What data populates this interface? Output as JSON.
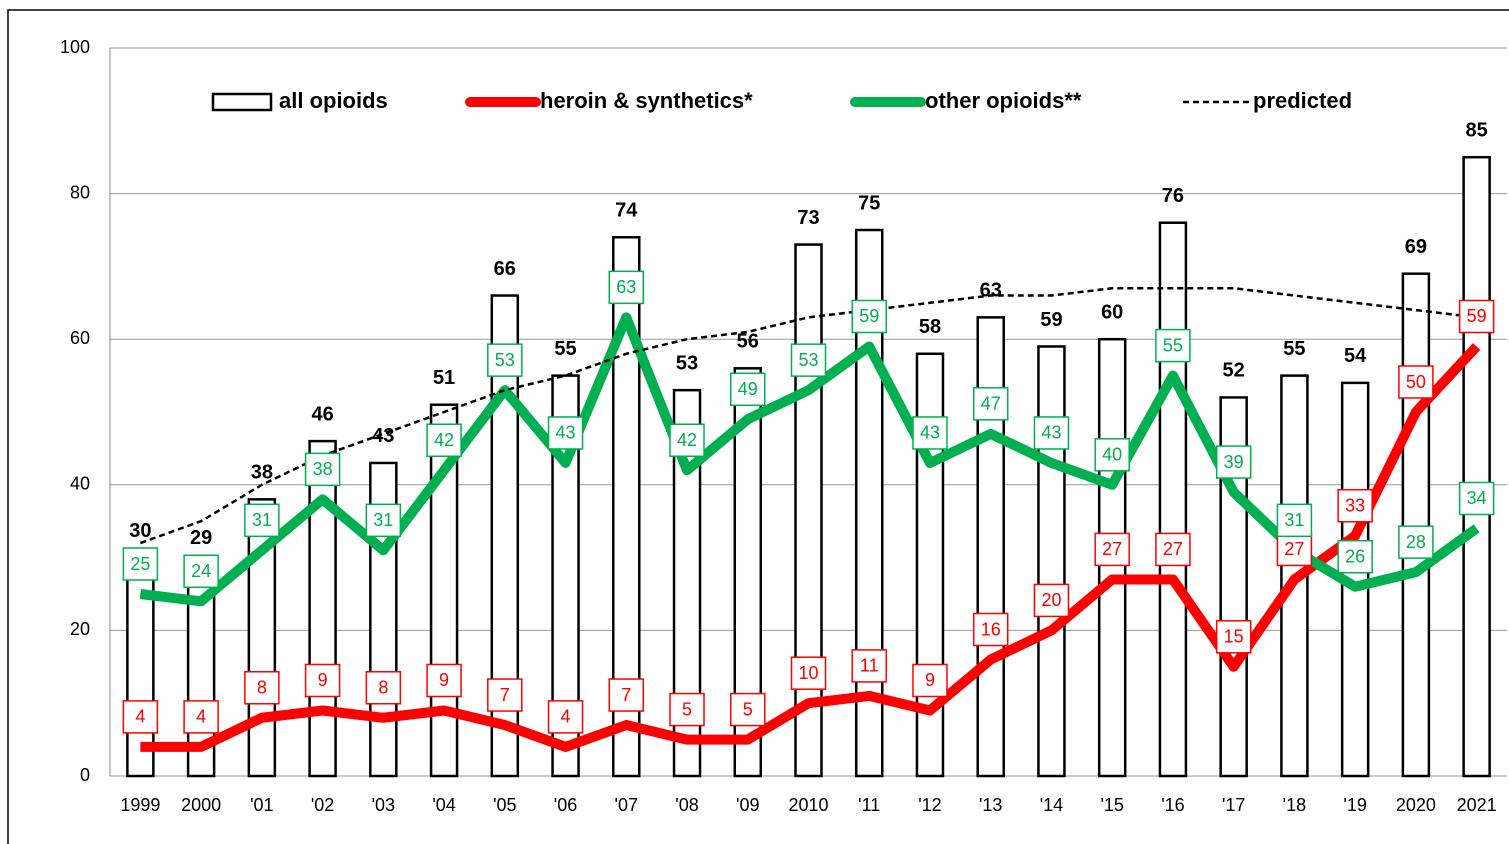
{
  "chart_data": {
    "type": "combo",
    "categories": [
      "1999",
      "2000",
      "'01",
      "'02",
      "'03",
      "'04",
      "'05",
      "'06",
      "'07",
      "'08",
      "'09",
      "2010",
      "'11",
      "'12",
      "'13",
      "'14",
      "'15",
      "'16",
      "'17",
      "'18",
      "'19",
      "2020",
      "2021"
    ],
    "series": [
      {
        "name": "all opioids",
        "type": "bar",
        "color": "#000000",
        "label_style": "plain",
        "values": [
          30,
          29,
          38,
          46,
          43,
          51,
          66,
          55,
          74,
          53,
          56,
          73,
          75,
          58,
          63,
          59,
          60,
          76,
          52,
          55,
          54,
          69,
          85
        ]
      },
      {
        "name": "heroin & synthetics*",
        "type": "line",
        "color": "#ff0000",
        "label_style": "boxed",
        "values": [
          4,
          4,
          8,
          9,
          8,
          9,
          7,
          4,
          7,
          5,
          5,
          10,
          11,
          9,
          16,
          20,
          27,
          27,
          15,
          27,
          33,
          50,
          59
        ]
      },
      {
        "name": "other opioids**",
        "type": "line",
        "color": "#00b050",
        "label_style": "boxed",
        "values": [
          25,
          24,
          31,
          38,
          31,
          42,
          53,
          43,
          63,
          42,
          49,
          53,
          59,
          43,
          47,
          43,
          40,
          55,
          39,
          31,
          26,
          28,
          34
        ]
      },
      {
        "name": "predicted",
        "type": "line",
        "color": "#000000",
        "dashed": true,
        "values": [
          32,
          35,
          40,
          44,
          47,
          50,
          53,
          55,
          58,
          60,
          61,
          63,
          64,
          65,
          66,
          66,
          67,
          67,
          67,
          66,
          65,
          64,
          63
        ]
      }
    ],
    "ylim": [
      0,
      100
    ],
    "yticks": [
      0,
      20,
      40,
      60,
      80,
      100
    ],
    "grid": true,
    "legend": "top"
  }
}
